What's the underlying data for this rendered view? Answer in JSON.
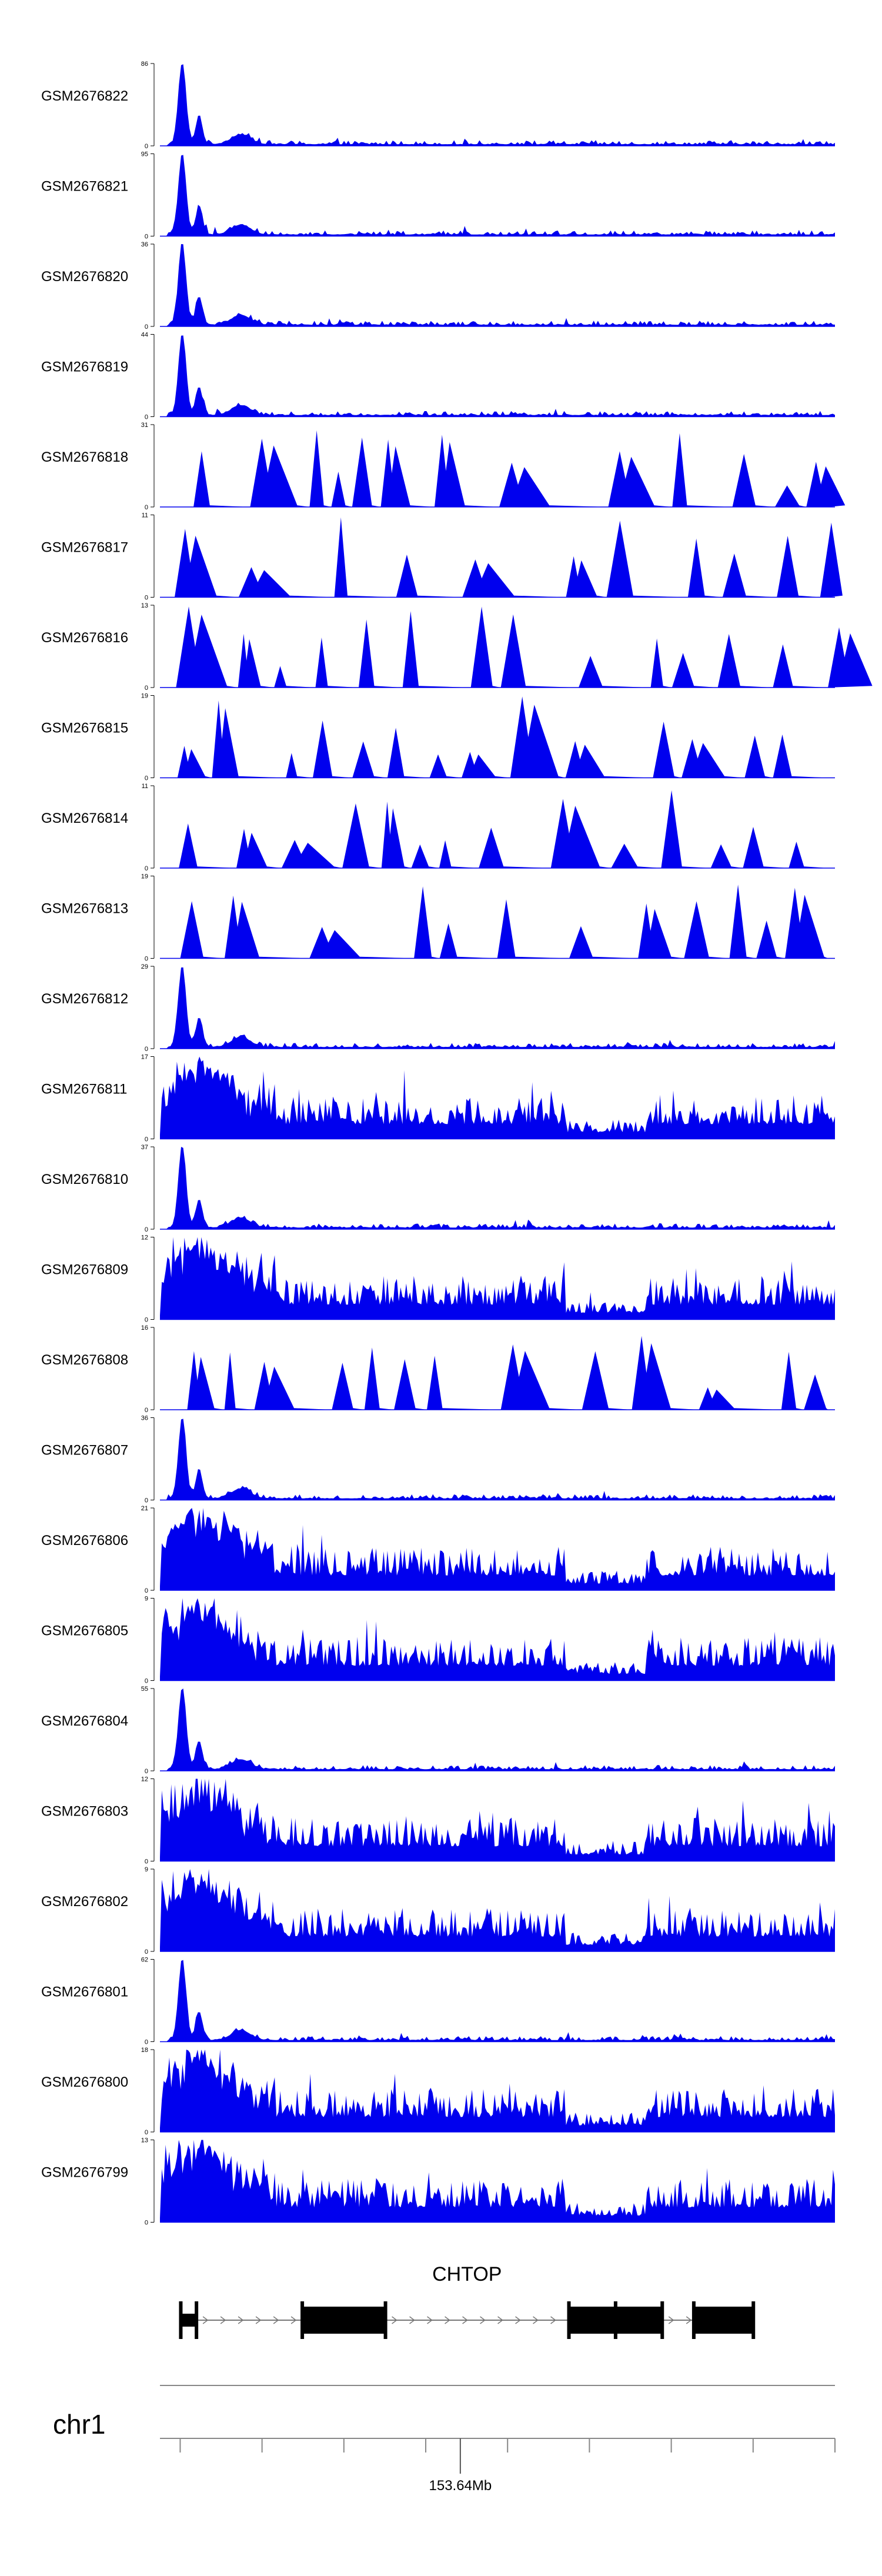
{
  "chart_data": {
    "type": "area",
    "fill_color": "#0000ee",
    "ylim_min": 0,
    "x_range": [
      0,
      1
    ],
    "tracks": [
      {
        "name": "GSM2676822",
        "ymax": 86,
        "profile": "sharp"
      },
      {
        "name": "GSM2676821",
        "ymax": 95,
        "profile": "sharp"
      },
      {
        "name": "GSM2676820",
        "ymax": 36,
        "profile": "sharp"
      },
      {
        "name": "GSM2676819",
        "ymax": 44,
        "profile": "sharp"
      },
      {
        "name": "GSM2676818",
        "ymax": 31,
        "profile": "sparse"
      },
      {
        "name": "GSM2676817",
        "ymax": 11,
        "profile": "sparse"
      },
      {
        "name": "GSM2676816",
        "ymax": 13,
        "profile": "sparse"
      },
      {
        "name": "GSM2676815",
        "ymax": 19,
        "profile": "sparse"
      },
      {
        "name": "GSM2676814",
        "ymax": 11,
        "profile": "sparse"
      },
      {
        "name": "GSM2676813",
        "ymax": 19,
        "profile": "sparse"
      },
      {
        "name": "GSM2676812",
        "ymax": 29,
        "profile": "sharp"
      },
      {
        "name": "GSM2676811",
        "ymax": 17,
        "profile": "dense"
      },
      {
        "name": "GSM2676810",
        "ymax": 37,
        "profile": "sharp"
      },
      {
        "name": "GSM2676809",
        "ymax": 12,
        "profile": "dense"
      },
      {
        "name": "GSM2676808",
        "ymax": 16,
        "profile": "sparse"
      },
      {
        "name": "GSM2676807",
        "ymax": 36,
        "profile": "sharp"
      },
      {
        "name": "GSM2676806",
        "ymax": 21,
        "profile": "dense"
      },
      {
        "name": "GSM2676805",
        "ymax": 9,
        "profile": "dense"
      },
      {
        "name": "GSM2676804",
        "ymax": 55,
        "profile": "sharp"
      },
      {
        "name": "GSM2676803",
        "ymax": 12,
        "profile": "dense"
      },
      {
        "name": "GSM2676802",
        "ymax": 9,
        "profile": "dense"
      },
      {
        "name": "GSM2676801",
        "ymax": 62,
        "profile": "sharp"
      },
      {
        "name": "GSM2676800",
        "ymax": 18,
        "profile": "dense"
      },
      {
        "name": "GSM2676799",
        "ymax": 13,
        "profile": "dense"
      }
    ],
    "gene": {
      "name": "CHTOP",
      "strand": "+",
      "exons": [
        [
          0.03,
          0.055
        ],
        [
          0.21,
          0.335
        ],
        [
          0.605,
          0.745
        ],
        [
          0.79,
          0.88
        ]
      ],
      "utr_thick_start": 0.05
    },
    "chromosome": "chr1",
    "axis_label": "153.64Mb",
    "axis_label_pos": 0.445
  }
}
